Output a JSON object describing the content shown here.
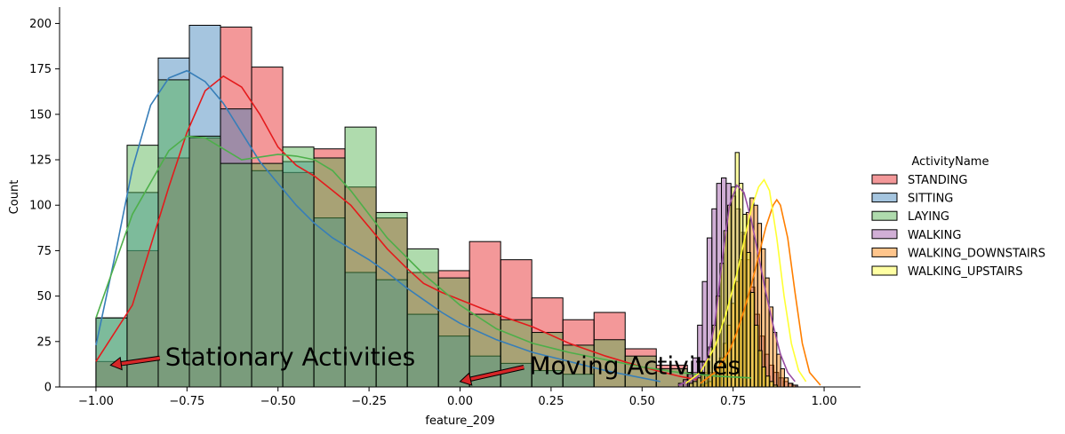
{
  "chart_data": {
    "type": "bar",
    "xlabel": "feature_209",
    "ylabel": "Count",
    "xlim": [
      -1.1,
      1.1
    ],
    "ylim": [
      0,
      209
    ],
    "xticks": [
      -1.0,
      -0.75,
      -0.5,
      -0.25,
      0.0,
      0.25,
      0.5,
      0.75,
      1.0
    ],
    "xtick_labels": [
      "−1.00",
      "−0.75",
      "−0.50",
      "−0.25",
      "0.00",
      "0.25",
      "0.50",
      "0.75",
      "1.00"
    ],
    "yticks": [
      0,
      25,
      50,
      75,
      100,
      125,
      150,
      175,
      200
    ],
    "ytick_labels": [
      "0",
      "25",
      "50",
      "75",
      "100",
      "125",
      "150",
      "175",
      "200"
    ],
    "grid": false,
    "legend": {
      "title": "ActivityName",
      "placement": "right",
      "entries": [
        "STANDING",
        "SITTING",
        "LAYING",
        "WALKING",
        "WALKING_DOWNSTAIRS",
        "WALKING_UPSTAIRS"
      ]
    },
    "series": [
      {
        "name": "STANDING",
        "color": "#e41a1c",
        "bins": {
          "start": -1.0,
          "width": 0.0855,
          "counts": [
            14,
            75,
            126,
            137,
            198,
            176,
            118,
            131,
            110,
            93,
            63,
            64,
            80,
            70,
            49,
            37,
            41,
            21,
            12,
            8
          ]
        },
        "kde": {
          "x": [
            -1.0,
            -0.9,
            -0.8,
            -0.75,
            -0.7,
            -0.65,
            -0.6,
            -0.55,
            -0.5,
            -0.45,
            -0.4,
            -0.35,
            -0.3,
            -0.25,
            -0.2,
            -0.15,
            -0.1,
            -0.05,
            0.0,
            0.1,
            0.2,
            0.3,
            0.4,
            0.5,
            0.6,
            0.65
          ],
          "y": [
            14,
            45,
            110,
            140,
            163,
            171,
            165,
            150,
            132,
            122,
            116,
            108,
            100,
            88,
            76,
            66,
            57,
            52,
            48,
            40,
            33,
            24,
            17,
            11,
            6,
            4
          ]
        }
      },
      {
        "name": "SITTING",
        "color": "#377eb8",
        "bins": {
          "start": -1.0,
          "width": 0.0855,
          "counts": [
            38,
            107,
            181,
            199,
            153,
            119,
            124,
            93,
            63,
            59,
            40,
            28,
            17,
            13,
            9,
            7
          ]
        },
        "kde": {
          "x": [
            -1.0,
            -0.95,
            -0.9,
            -0.85,
            -0.8,
            -0.75,
            -0.7,
            -0.65,
            -0.6,
            -0.55,
            -0.5,
            -0.45,
            -0.4,
            -0.35,
            -0.3,
            -0.25,
            -0.2,
            -0.15,
            -0.1,
            -0.05,
            0.0,
            0.1,
            0.2,
            0.3,
            0.4,
            0.5,
            0.55
          ],
          "y": [
            23,
            70,
            120,
            155,
            170,
            174,
            168,
            156,
            140,
            124,
            112,
            100,
            90,
            82,
            76,
            70,
            63,
            55,
            48,
            41,
            35,
            26,
            19,
            14,
            9,
            5,
            3
          ]
        }
      },
      {
        "name": "LAYING",
        "color": "#4daf4a",
        "bins": {
          "start": -1.0,
          "width": 0.0855,
          "counts": [
            38,
            133,
            169,
            138,
            123,
            123,
            132,
            126,
            143,
            96,
            76,
            60,
            40,
            37,
            30,
            23,
            26,
            17,
            10,
            7
          ]
        },
        "kde": {
          "x": [
            -1.0,
            -0.9,
            -0.8,
            -0.75,
            -0.7,
            -0.6,
            -0.5,
            -0.45,
            -0.4,
            -0.35,
            -0.3,
            -0.25,
            -0.2,
            -0.15,
            -0.1,
            0.0,
            0.1,
            0.2,
            0.3,
            0.4,
            0.5,
            0.6,
            0.7,
            0.8
          ],
          "y": [
            38,
            95,
            130,
            138,
            137,
            125,
            128,
            127,
            125,
            119,
            108,
            95,
            82,
            72,
            62,
            45,
            32,
            24,
            19,
            15,
            11,
            8,
            6,
            5
          ]
        }
      },
      {
        "name": "WALKING",
        "color": "#984ea3",
        "bins": {
          "start": 0.6,
          "width": 0.0131,
          "counts": [
            2,
            4,
            8,
            16,
            34,
            58,
            82,
            98,
            112,
            115,
            112,
            105,
            98,
            85,
            70,
            55,
            40,
            28,
            18,
            12,
            8,
            5,
            3,
            2,
            1
          ]
        },
        "kde": {
          "x": [
            0.6,
            0.65,
            0.68,
            0.7,
            0.72,
            0.74,
            0.76,
            0.78,
            0.8,
            0.82,
            0.84,
            0.86,
            0.88,
            0.9,
            0.92
          ],
          "y": [
            1,
            5,
            16,
            35,
            70,
            100,
            111,
            107,
            92,
            72,
            52,
            34,
            18,
            8,
            3
          ]
        }
      },
      {
        "name": "WALKING_DOWNSTAIRS",
        "color": "#ff7f00",
        "bins": {
          "start": 0.66,
          "width": 0.0105,
          "counts": [
            1,
            2,
            3,
            6,
            10,
            16,
            24,
            34,
            46,
            58,
            70,
            84,
            96,
            104,
            100,
            90,
            76,
            60,
            44,
            30,
            18,
            10,
            5,
            2,
            1
          ]
        },
        "kde": {
          "x": [
            0.66,
            0.7,
            0.74,
            0.76,
            0.78,
            0.8,
            0.82,
            0.84,
            0.86,
            0.87,
            0.88,
            0.9,
            0.92,
            0.94,
            0.96,
            0.99
          ],
          "y": [
            2,
            8,
            20,
            30,
            42,
            56,
            72,
            88,
            100,
            103,
            100,
            82,
            52,
            24,
            8,
            1
          ]
        }
      },
      {
        "name": "WALKING_UPSTAIRS",
        "color": "#ffff33",
        "bins": {
          "start": 0.63,
          "width": 0.0105,
          "counts": [
            2,
            3,
            5,
            8,
            14,
            22,
            34,
            50,
            68,
            86,
            100,
            110,
            129,
            112,
            95,
            74,
            52,
            34,
            20,
            11,
            6,
            3,
            1
          ]
        },
        "kde": {
          "x": [
            0.62,
            0.66,
            0.7,
            0.73,
            0.76,
            0.78,
            0.8,
            0.82,
            0.835,
            0.85,
            0.87,
            0.89,
            0.91,
            0.93,
            0.95
          ],
          "y": [
            2,
            8,
            22,
            40,
            62,
            80,
            98,
            110,
            114,
            108,
            82,
            50,
            24,
            9,
            3
          ]
        }
      }
    ],
    "annotations": [
      {
        "text": "Stationary Activities",
        "x": -0.81,
        "y": 12,
        "arrow_to": [
          -0.96,
          12
        ]
      },
      {
        "text": "Moving Activities",
        "x": 0.19,
        "y": 7,
        "arrow_to": [
          0.0,
          3
        ]
      }
    ]
  }
}
